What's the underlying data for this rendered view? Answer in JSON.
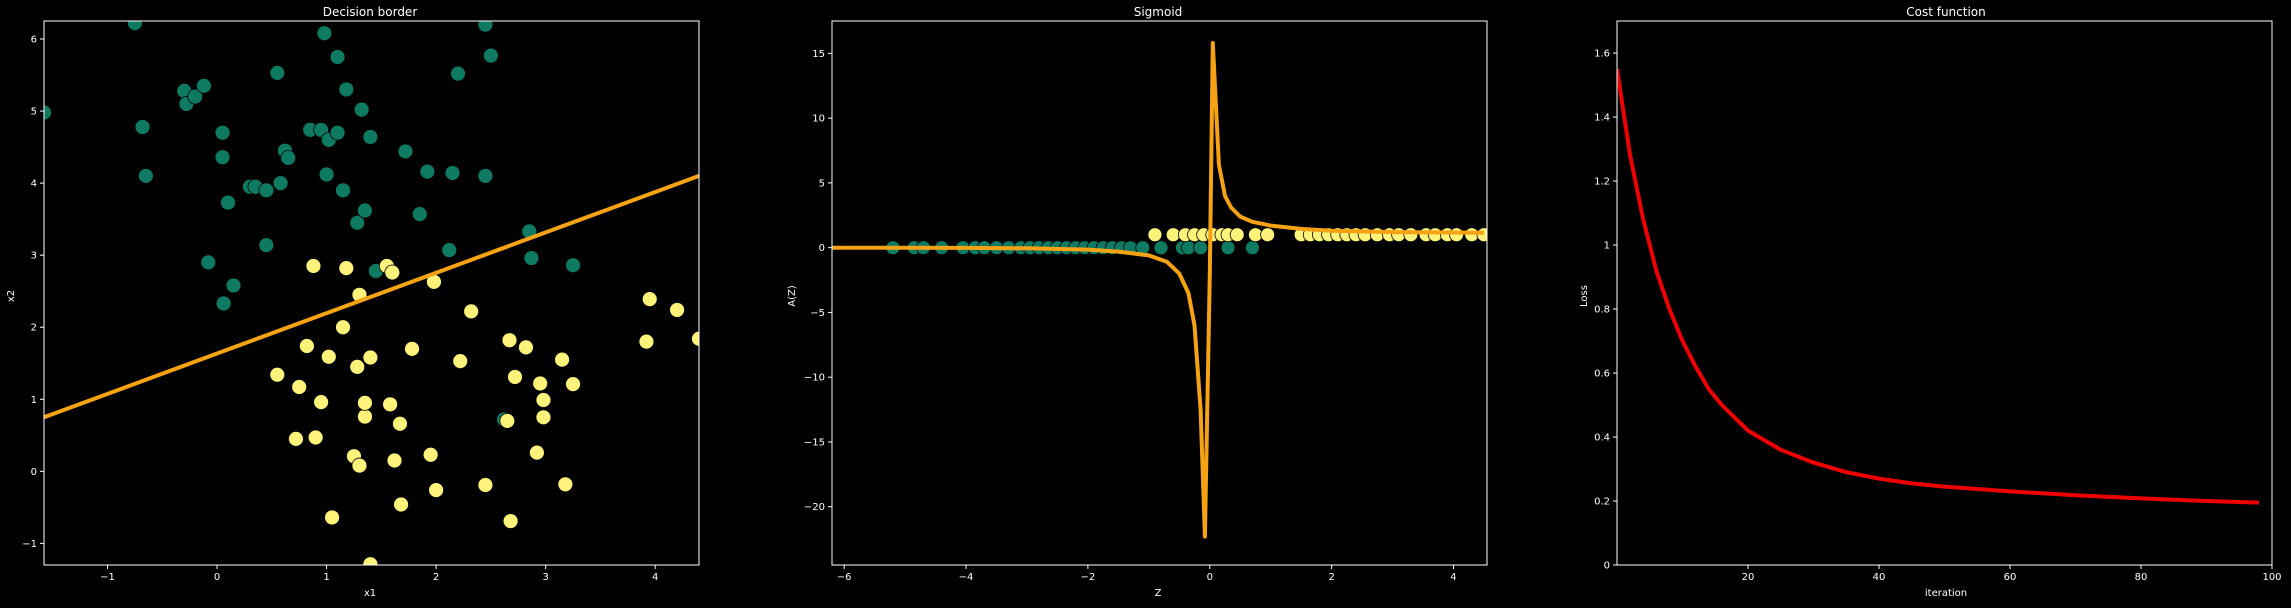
{
  "colors": {
    "background": "#000000",
    "axis": "#ffffff",
    "class0": "#0f7a62",
    "class1": "#fdf27a",
    "boundary": "#f5a315",
    "cost": "#ee0000"
  },
  "chart_data": [
    {
      "type": "scatter",
      "title": "Decision border",
      "xlabel": "x1",
      "ylabel": "x2",
      "xlim": [
        -1.58,
        4.4
      ],
      "ylim": [
        -1.3,
        6.25
      ],
      "xticks": [
        -1,
        0,
        1,
        2,
        3,
        4
      ],
      "yticks": [
        -1,
        0,
        1,
        2,
        3,
        4,
        5,
        6
      ],
      "grid": false,
      "series": [
        {
          "class": 0,
          "color": "#0f7a62",
          "points": [
            [
              -1.58,
              4.98
            ],
            [
              -0.75,
              6.22
            ],
            [
              -0.68,
              4.78
            ],
            [
              -0.65,
              4.1
            ],
            [
              -0.3,
              5.28
            ],
            [
              -0.28,
              5.1
            ],
            [
              -0.2,
              5.2
            ],
            [
              -0.12,
              5.35
            ],
            [
              -0.08,
              2.9
            ],
            [
              0.05,
              4.7
            ],
            [
              0.05,
              4.36
            ],
            [
              0.06,
              2.33
            ],
            [
              0.1,
              3.73
            ],
            [
              0.15,
              2.58
            ],
            [
              0.3,
              3.95
            ],
            [
              0.35,
              3.95
            ],
            [
              0.45,
              3.9
            ],
            [
              0.45,
              3.14
            ],
            [
              0.55,
              5.53
            ],
            [
              0.58,
              4.0
            ],
            [
              0.62,
              4.45
            ],
            [
              0.65,
              4.35
            ],
            [
              0.85,
              4.74
            ],
            [
              0.95,
              4.74
            ],
            [
              0.98,
              6.08
            ],
            [
              1.0,
              4.12
            ],
            [
              1.02,
              4.6
            ],
            [
              1.1,
              4.7
            ],
            [
              1.1,
              5.75
            ],
            [
              1.15,
              3.9
            ],
            [
              1.18,
              5.3
            ],
            [
              1.28,
              3.45
            ],
            [
              1.32,
              5.02
            ],
            [
              1.35,
              3.62
            ],
            [
              1.4,
              4.64
            ],
            [
              1.45,
              2.78
            ],
            [
              1.72,
              4.44
            ],
            [
              1.85,
              3.57
            ],
            [
              1.92,
              4.16
            ],
            [
              2.12,
              3.07
            ],
            [
              2.15,
              4.14
            ],
            [
              2.2,
              5.52
            ],
            [
              2.45,
              6.2
            ],
            [
              2.45,
              4.1
            ],
            [
              2.5,
              5.77
            ],
            [
              2.85,
              3.33
            ],
            [
              2.87,
              2.96
            ],
            [
              3.25,
              2.86
            ],
            [
              2.62,
              0.72
            ]
          ]
        },
        {
          "class": 1,
          "color": "#fdf27a",
          "points": [
            [
              0.55,
              1.34
            ],
            [
              0.75,
              1.17
            ],
            [
              0.72,
              0.45
            ],
            [
              0.82,
              1.74
            ],
            [
              0.88,
              2.85
            ],
            [
              0.9,
              0.47
            ],
            [
              0.95,
              0.96
            ],
            [
              1.02,
              1.59
            ],
            [
              1.05,
              -0.64
            ],
            [
              1.15,
              2.0
            ],
            [
              1.18,
              2.82
            ],
            [
              1.25,
              0.21
            ],
            [
              1.28,
              1.45
            ],
            [
              1.3,
              0.08
            ],
            [
              1.3,
              2.45
            ],
            [
              1.35,
              0.76
            ],
            [
              1.35,
              0.95
            ],
            [
              1.4,
              1.58
            ],
            [
              1.4,
              -1.29
            ],
            [
              1.55,
              2.85
            ],
            [
              1.58,
              0.93
            ],
            [
              1.6,
              2.76
            ],
            [
              1.62,
              0.15
            ],
            [
              1.67,
              0.66
            ],
            [
              1.68,
              -0.46
            ],
            [
              1.78,
              1.7
            ],
            [
              1.95,
              0.23
            ],
            [
              1.98,
              2.63
            ],
            [
              2.0,
              -0.26
            ],
            [
              2.22,
              1.53
            ],
            [
              2.32,
              2.22
            ],
            [
              2.45,
              -0.19
            ],
            [
              2.65,
              0.7
            ],
            [
              2.67,
              1.82
            ],
            [
              2.68,
              -0.69
            ],
            [
              2.72,
              1.31
            ],
            [
              2.82,
              1.72
            ],
            [
              2.92,
              0.26
            ],
            [
              2.95,
              1.22
            ],
            [
              2.98,
              0.99
            ],
            [
              2.98,
              0.75
            ],
            [
              3.15,
              1.55
            ],
            [
              3.18,
              -0.18
            ],
            [
              3.25,
              1.21
            ],
            [
              3.92,
              1.8
            ],
            [
              3.95,
              2.39
            ],
            [
              4.2,
              2.24
            ],
            [
              4.4,
              1.84
            ]
          ]
        }
      ],
      "decision_boundary": {
        "x": [
          -1.58,
          4.4
        ],
        "y": [
          0.75,
          4.1
        ]
      }
    },
    {
      "type": "line",
      "title": "Sigmoid",
      "xlabel": "Z",
      "ylabel": "A(Z)",
      "xlim": [
        -6.2,
        4.55
      ],
      "ylim": [
        -24.5,
        17.5
      ],
      "xticks": [
        -6,
        -4,
        -2,
        0,
        2,
        4
      ],
      "yticks": [
        -20,
        -15,
        -10,
        -5,
        0,
        5,
        10,
        15
      ],
      "grid": false,
      "curve": {
        "x": [
          -6.2,
          -5.5,
          -5.0,
          -4.0,
          -3.0,
          -2.0,
          -1.5,
          -1.0,
          -0.7,
          -0.5,
          -0.35,
          -0.25,
          -0.15,
          -0.08,
          0.0,
          0.05,
          0.15,
          0.25,
          0.35,
          0.5,
          0.7,
          1.0,
          1.5,
          2.0,
          3.0,
          4.5
        ],
        "y": [
          0.0,
          0.0,
          0.0,
          -0.02,
          -0.05,
          -0.15,
          -0.3,
          -0.6,
          -1.1,
          -2.0,
          -3.5,
          -6.0,
          -12.5,
          -22.3,
          -2.0,
          15.8,
          6.4,
          4.0,
          3.1,
          2.4,
          2.0,
          1.7,
          1.45,
          1.3,
          1.2,
          1.15
        ]
      },
      "series": [
        {
          "class": 0,
          "color": "#0f7a62",
          "z": [
            -5.2,
            -4.85,
            -4.7,
            -4.4,
            -4.05,
            -3.85,
            -3.7,
            -3.5,
            -3.3,
            -3.1,
            -2.95,
            -2.8,
            -2.65,
            -2.5,
            -2.35,
            -2.2,
            -2.05,
            -1.9,
            -1.75,
            -1.6,
            -1.45,
            -1.3,
            -1.1,
            -0.8,
            -0.45,
            -0.35,
            -0.15,
            0.3,
            0.7
          ],
          "a": [
            0,
            0,
            0,
            0,
            0,
            0,
            0,
            0,
            0,
            0,
            0,
            0,
            0,
            0,
            0,
            0,
            0,
            0,
            0,
            0,
            0,
            0,
            0,
            0,
            0,
            0,
            0,
            0,
            0
          ]
        },
        {
          "class": 1,
          "color": "#fdf27a",
          "z": [
            -0.9,
            -0.6,
            -0.4,
            -0.25,
            -0.1,
            0.05,
            0.2,
            0.3,
            0.45,
            0.75,
            0.95,
            1.5,
            1.65,
            1.8,
            1.95,
            2.1,
            2.25,
            2.4,
            2.55,
            2.75,
            2.95,
            3.1,
            3.3,
            3.55,
            3.7,
            3.9,
            4.05,
            4.3,
            4.5
          ],
          "a": [
            1,
            1,
            1,
            1,
            1,
            1,
            1,
            1,
            1,
            1,
            1,
            1,
            1,
            1,
            1,
            1,
            1,
            1,
            1,
            1,
            1,
            1,
            1,
            1,
            1,
            1,
            1,
            1,
            1
          ]
        }
      ]
    },
    {
      "type": "line",
      "title": "Cost function",
      "xlabel": "iteration",
      "ylabel": "Loss",
      "xlim": [
        0,
        100
      ],
      "ylim": [
        0.0,
        1.7
      ],
      "xticks": [
        20,
        40,
        60,
        80,
        100
      ],
      "yticks": [
        0.0,
        0.2,
        0.4,
        0.6,
        0.8,
        1.0,
        1.2,
        1.4,
        1.6
      ],
      "grid": false,
      "series": [
        {
          "color": "#ee0000",
          "x": [
            0,
            2,
            4,
            6,
            8,
            10,
            12,
            14,
            16,
            18,
            20,
            25,
            30,
            35,
            40,
            45,
            50,
            60,
            70,
            80,
            90,
            98
          ],
          "y": [
            1.55,
            1.28,
            1.08,
            0.92,
            0.8,
            0.7,
            0.62,
            0.55,
            0.5,
            0.46,
            0.42,
            0.36,
            0.32,
            0.29,
            0.27,
            0.255,
            0.245,
            0.23,
            0.218,
            0.208,
            0.2,
            0.195
          ]
        }
      ]
    }
  ]
}
